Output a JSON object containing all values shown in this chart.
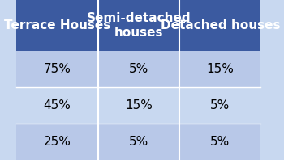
{
  "columns": [
    "Terrace Houses",
    "Semi-detached\nhouses",
    "Detached houses"
  ],
  "rows": [
    [
      "75%",
      "5%",
      "15%"
    ],
    [
      "45%",
      "15%",
      "5%"
    ],
    [
      "25%",
      "5%",
      "5%"
    ]
  ],
  "header_bg": "#3B5AA0",
  "header_text_color": "#FFFFFF",
  "row_bg_odd": "#B8C8E8",
  "row_bg_even": "#C8D8F0",
  "cell_text_color": "#000000",
  "divider_color": "#FFFFFF",
  "header_fontsize": 11,
  "cell_fontsize": 11
}
